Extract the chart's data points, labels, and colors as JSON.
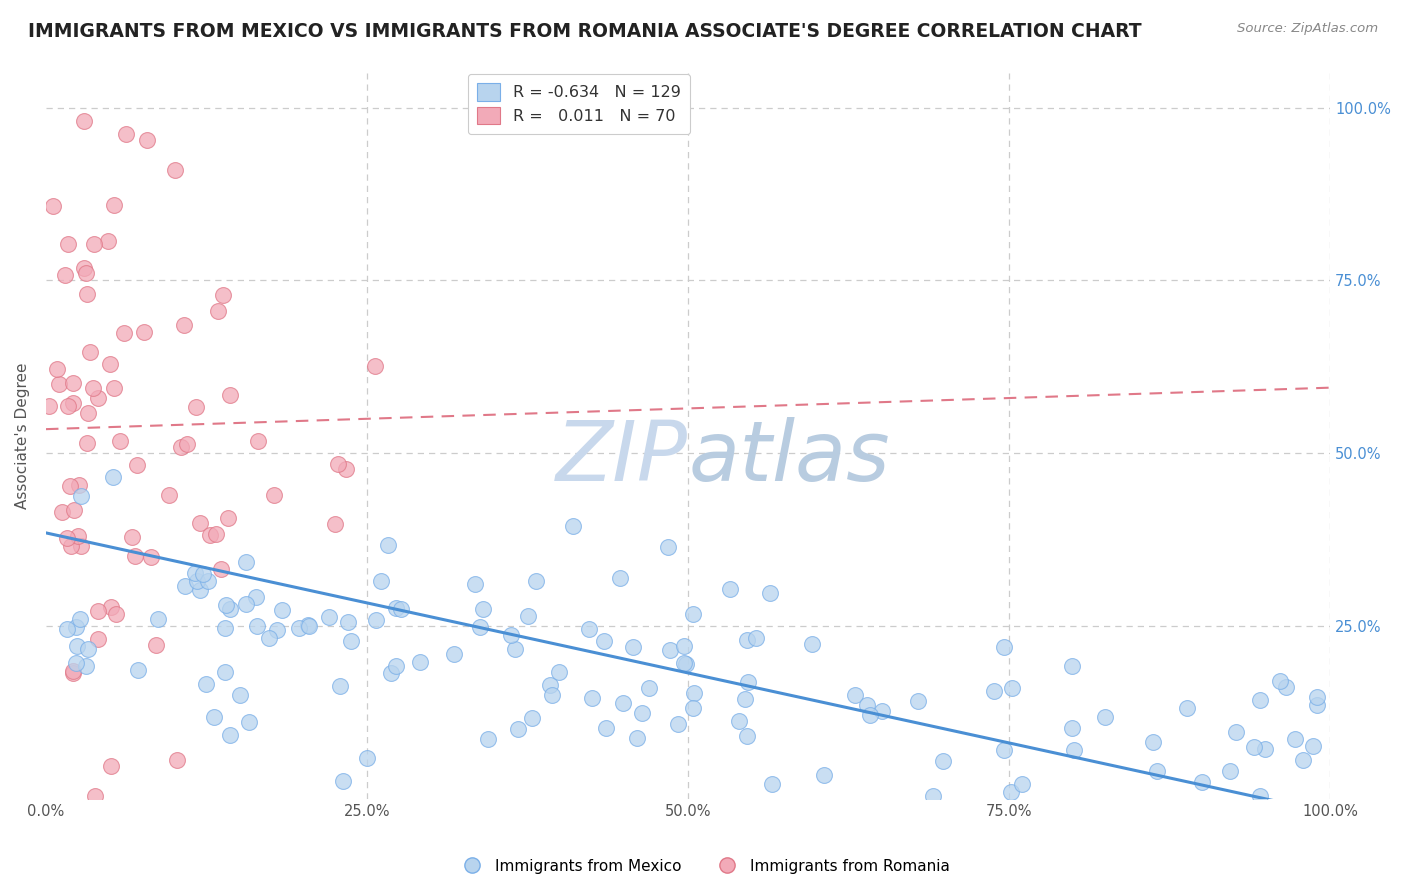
{
  "title": "IMMIGRANTS FROM MEXICO VS IMMIGRANTS FROM ROMANIA ASSOCIATE'S DEGREE CORRELATION CHART",
  "source_text": "Source: ZipAtlas.com",
  "ylabel": "Associate's Degree",
  "blue_R": -0.634,
  "blue_N": 129,
  "pink_R": 0.011,
  "pink_N": 70,
  "blue_color": "#b8d4ee",
  "pink_color": "#f2aab8",
  "blue_edge_color": "#7aafe8",
  "pink_edge_color": "#e07888",
  "blue_line_color": "#4a8fd4",
  "pink_line_color": "#e07888",
  "grid_color": "#cccccc",
  "background_color": "#ffffff",
  "title_color": "#222222",
  "title_fontsize": 13.5,
  "axis_label_fontsize": 11,
  "tick_fontsize": 10.5,
  "right_tick_color": "#4a8fd4",
  "watermark_color": "#ccd8ea",
  "watermark_fontsize": 60,
  "xlim": [
    0,
    1.0
  ],
  "ylim": [
    0,
    1.05
  ],
  "blue_line_y0": 0.385,
  "blue_line_y1": -0.02,
  "pink_line_y0": 0.535,
  "pink_line_y1": 0.595
}
